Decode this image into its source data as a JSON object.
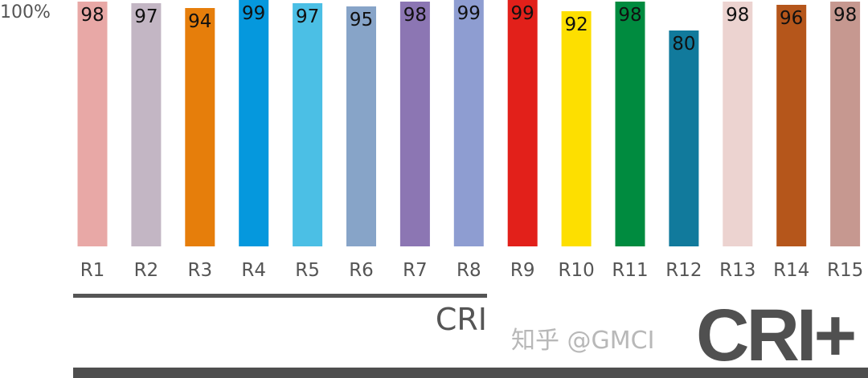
{
  "chart_data": {
    "type": "bar",
    "categories": [
      "R1",
      "R2",
      "R3",
      "R4",
      "R5",
      "R6",
      "R7",
      "R8",
      "R9",
      "R10",
      "R11",
      "R12",
      "R13",
      "R14",
      "R15"
    ],
    "values": [
      98,
      97,
      94,
      99,
      97,
      95,
      98,
      99,
      99,
      92,
      98,
      80,
      98,
      96,
      98
    ],
    "colors": [
      "#e8a8a6",
      "#c3b6c4",
      "#e67e0b",
      "#0598dd",
      "#4bbfe5",
      "#87a4c8",
      "#8c76b3",
      "#8e9dd1",
      "#e2201a",
      "#fddf00",
      "#008b3f",
      "#117a9c",
      "#ecd3d0",
      "#b5561b",
      "#c69890"
    ],
    "y_tick_label": "100%",
    "groups": [
      {
        "label": "CRI",
        "categories": [
          "R1",
          "R2",
          "R3",
          "R4",
          "R5",
          "R6",
          "R7",
          "R8"
        ]
      },
      {
        "label": "CRI+",
        "categories": [
          "R1",
          "R2",
          "R3",
          "R4",
          "R5",
          "R6",
          "R7",
          "R8",
          "R9",
          "R10",
          "R11",
          "R12",
          "R13",
          "R14",
          "R15"
        ]
      }
    ],
    "grid": false
  },
  "watermark": "知乎 @GMCI"
}
